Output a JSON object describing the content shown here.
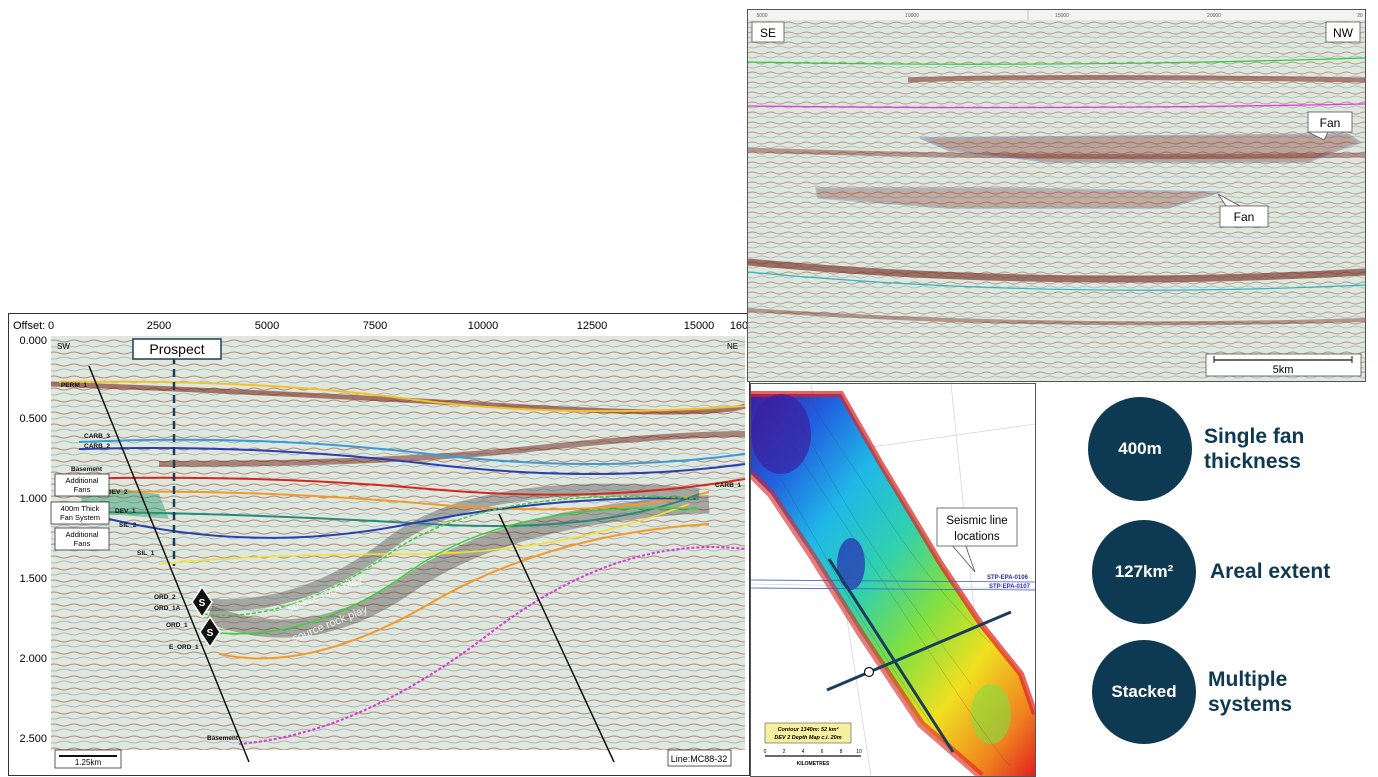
{
  "main_section": {
    "offset_label": "Offset:",
    "offset_ticks": [
      "0",
      "2500",
      "5000",
      "7500",
      "10000",
      "12500",
      "15000",
      "160"
    ],
    "depth_ticks": [
      "0.000",
      "0.500",
      "1.000",
      "1.500",
      "2.000",
      "2.500"
    ],
    "sw_label": "SW",
    "ne_label": "NE",
    "prospect_label": "Prospect",
    "horizons": [
      "PERM_1",
      "CARB_3",
      "CARB_2",
      "Basement",
      "DEV_2",
      "DEV_1",
      "SIL_2",
      "SIL_1",
      "ORD_2",
      "ORD_1A",
      "ORD_1",
      "E_ORD_1",
      "Basement",
      "CARB_1"
    ],
    "callouts": [
      {
        "line1": "Additional",
        "line2": "Fans"
      },
      {
        "line1": "400m Thick",
        "line2": "Fan System"
      },
      {
        "line1": "Additional",
        "line2": "Fans"
      }
    ],
    "source_rock_label": "source rock play",
    "source_marker": "S",
    "scale_label": "1.25km",
    "line_label": "Line:MC88-32"
  },
  "top_section": {
    "se_label": "SE",
    "nw_label": "NW",
    "ticks": [
      "5000",
      "10000",
      "15000",
      "20000",
      "20"
    ],
    "fan_labels": [
      "Fan",
      "Fan"
    ],
    "scale_label": "5km"
  },
  "map": {
    "callout_line1": "Seismic line",
    "callout_line2": "locations",
    "line_labels": [
      "STP-EPA-0106",
      "STP-EPA-0107"
    ],
    "legend_line1": "Contour 1340m: 52 km²",
    "legend_line2": "DEV 2 Depth Map c.i. 20m",
    "scale_ticks": [
      "0",
      "2",
      "4",
      "6",
      "8",
      "10"
    ],
    "scale_unit": "KILOMETRES"
  },
  "stats": [
    {
      "value": "400m",
      "label1": "Single fan",
      "label2": "thickness"
    },
    {
      "value": "127km²",
      "label1": "Areal extent",
      "label2": ""
    },
    {
      "value": "Stacked",
      "label1": "Multiple systems",
      "label2": ""
    }
  ],
  "colors": {
    "circle": "#0d3a52",
    "accent": "#0d3a52"
  }
}
